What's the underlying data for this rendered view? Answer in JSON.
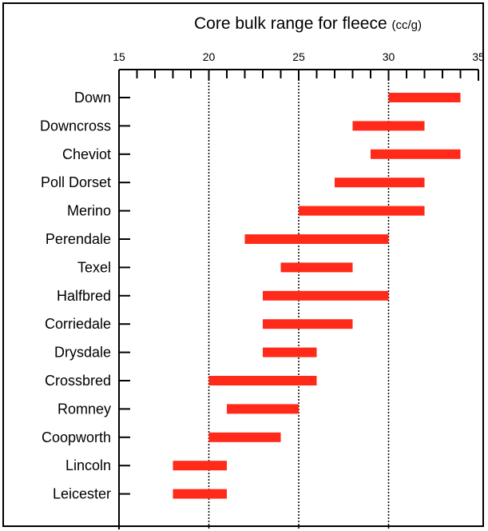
{
  "chart_data": {
    "type": "bar",
    "subtype": "floating-range-horizontal",
    "title": "Core bulk range for fleece",
    "title_unit": "(cc/g)",
    "xlabel": "",
    "ylabel": "",
    "xlim": [
      15,
      35
    ],
    "x_ticks": [
      15,
      20,
      25,
      30,
      35
    ],
    "x_minor_step": 1,
    "x_axis_position": "top",
    "grid": "dotted vertical lines at 20, 25, 30",
    "bar_color": "#ff2a1a",
    "legend": "none",
    "categories": [
      "Down",
      "Downcross",
      "Cheviot",
      "Poll Dorset",
      "Merino",
      "Perendale",
      "Texel",
      "Halfbred",
      "Corriedale",
      "Drysdale",
      "Crossbred",
      "Romney",
      "Coopworth",
      "Lincoln",
      "Leicester"
    ],
    "ranges": [
      [
        30,
        34
      ],
      [
        28,
        32
      ],
      [
        29,
        34
      ],
      [
        27,
        32
      ],
      [
        25,
        32
      ],
      [
        22,
        30
      ],
      [
        24,
        28
      ],
      [
        23,
        30
      ],
      [
        23,
        28
      ],
      [
        23,
        26
      ],
      [
        20,
        26
      ],
      [
        21,
        25
      ],
      [
        20,
        24
      ],
      [
        18,
        21
      ],
      [
        18,
        21
      ]
    ]
  }
}
